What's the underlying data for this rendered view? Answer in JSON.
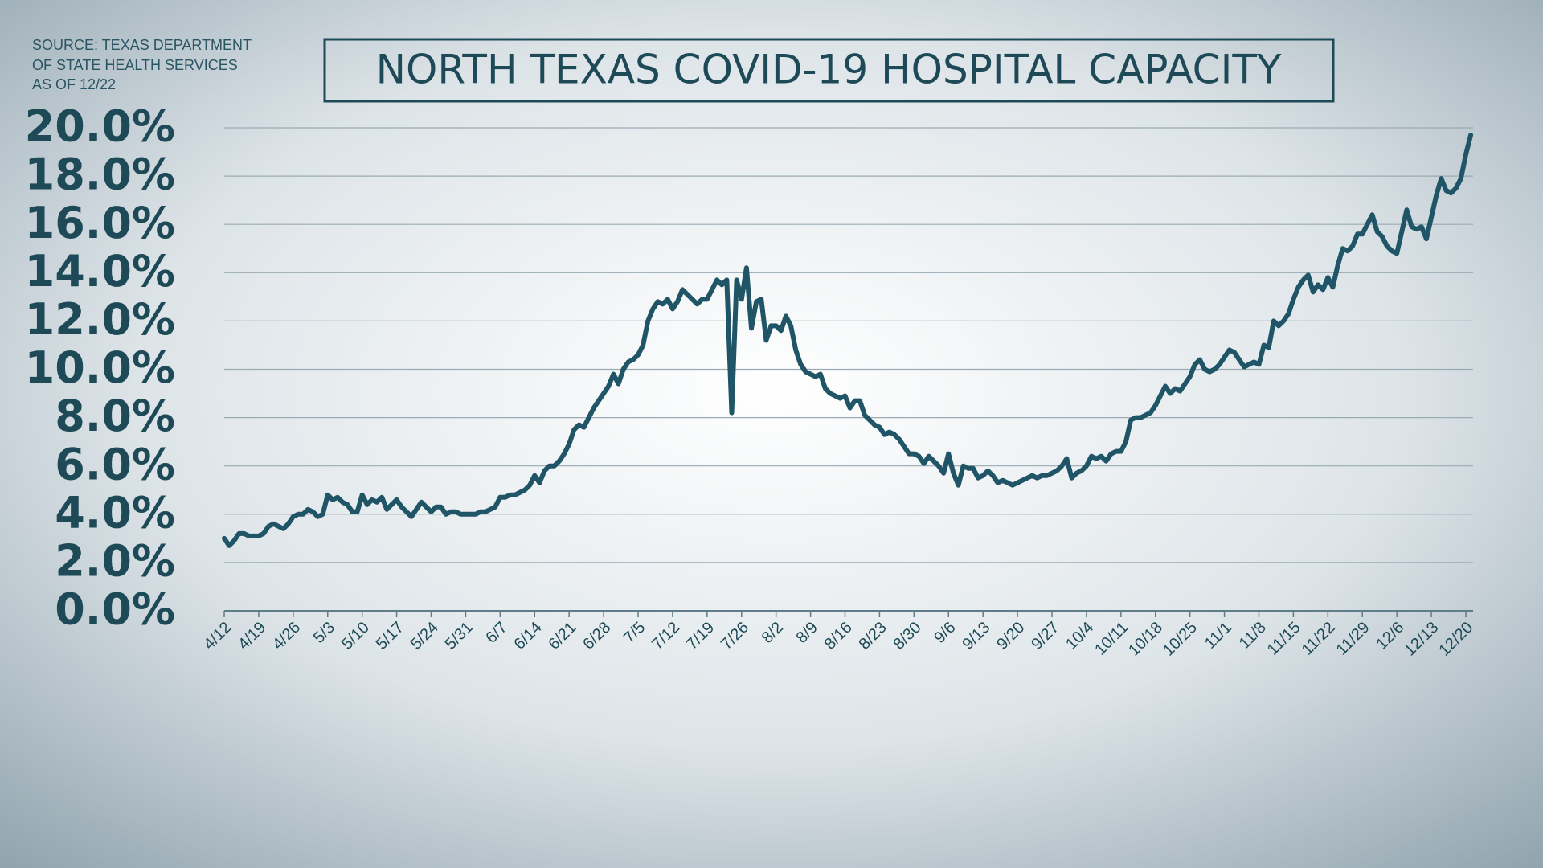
{
  "chart_data": {
    "type": "line",
    "title": "NORTH TEXAS COVID-19 HOSPITAL CAPACITY",
    "source": [
      "SOURCE: TEXAS DEPARTMENT",
      "OF STATE HEALTH SERVICES",
      "AS OF 12/22"
    ],
    "color": "#1f5566",
    "grid": true,
    "ylim": [
      0,
      20
    ],
    "yticks": [
      {
        "value": 0,
        "label": "0.0%"
      },
      {
        "value": 2,
        "label": "2.0%"
      },
      {
        "value": 4,
        "label": "4.0%"
      },
      {
        "value": 6,
        "label": "6.0%"
      },
      {
        "value": 8,
        "label": "8.0%"
      },
      {
        "value": 10,
        "label": "10.0%"
      },
      {
        "value": 12,
        "label": "12.0%"
      },
      {
        "value": 14,
        "label": "14.0%"
      },
      {
        "value": 16,
        "label": "16.0%"
      },
      {
        "value": 18,
        "label": "18.0%"
      },
      {
        "value": 20,
        "label": "20.0%"
      }
    ],
    "categories": [
      "4/12",
      null,
      null,
      null,
      null,
      null,
      null,
      "4/19",
      null,
      null,
      null,
      null,
      null,
      null,
      "4/26",
      null,
      null,
      null,
      null,
      null,
      null,
      "5/3",
      null,
      null,
      null,
      null,
      null,
      null,
      "5/10",
      null,
      null,
      null,
      null,
      null,
      null,
      "5/17",
      null,
      null,
      null,
      null,
      null,
      null,
      "5/24",
      null,
      null,
      null,
      null,
      null,
      null,
      "5/31",
      null,
      null,
      null,
      null,
      null,
      null,
      "6/7",
      null,
      null,
      null,
      null,
      null,
      null,
      "6/14",
      null,
      null,
      null,
      null,
      null,
      null,
      "6/21",
      null,
      null,
      null,
      null,
      null,
      null,
      "6/28",
      null,
      null,
      null,
      null,
      null,
      null,
      "7/5",
      null,
      null,
      null,
      null,
      null,
      null,
      "7/12",
      null,
      null,
      null,
      null,
      null,
      null,
      "7/19",
      null,
      null,
      null,
      null,
      null,
      null,
      "7/26",
      null,
      null,
      null,
      null,
      null,
      null,
      "8/2",
      null,
      null,
      null,
      null,
      null,
      null,
      "8/9",
      null,
      null,
      null,
      null,
      null,
      null,
      "8/16",
      null,
      null,
      null,
      null,
      null,
      null,
      "8/23",
      null,
      null,
      null,
      null,
      null,
      null,
      "8/30",
      null,
      null,
      null,
      null,
      null,
      null,
      "9/6",
      null,
      null,
      null,
      null,
      null,
      null,
      "9/13",
      null,
      null,
      null,
      null,
      null,
      null,
      "9/20",
      null,
      null,
      null,
      null,
      null,
      null,
      "9/27",
      null,
      null,
      null,
      null,
      null,
      null,
      "10/4",
      null,
      null,
      null,
      null,
      null,
      null,
      "10/11",
      null,
      null,
      null,
      null,
      null,
      null,
      "10/18",
      null,
      null,
      null,
      null,
      null,
      null,
      "10/25",
      null,
      null,
      null,
      null,
      null,
      null,
      "11/1",
      null,
      null,
      null,
      null,
      null,
      null,
      "11/8",
      null,
      null,
      null,
      null,
      null,
      null,
      "11/15",
      null,
      null,
      null,
      null,
      null,
      null,
      "11/22",
      null,
      null,
      null,
      null,
      null,
      null,
      "11/29",
      null,
      null,
      null,
      null,
      null,
      null,
      "12/6",
      null,
      null,
      null,
      null,
      null,
      null,
      "12/13",
      null,
      null,
      null,
      null,
      null,
      null,
      "12/20",
      null
    ],
    "values": [
      3.0,
      2.7,
      2.9,
      3.2,
      3.2,
      3.1,
      3.1,
      3.1,
      3.2,
      3.5,
      3.6,
      3.5,
      3.4,
      3.6,
      3.9,
      4.0,
      4.0,
      4.2,
      4.1,
      3.9,
      4.0,
      4.8,
      4.6,
      4.7,
      4.5,
      4.4,
      4.1,
      4.1,
      4.8,
      4.4,
      4.6,
      4.5,
      4.7,
      4.2,
      4.4,
      4.6,
      4.3,
      4.1,
      3.9,
      4.2,
      4.5,
      4.3,
      4.1,
      4.3,
      4.3,
      4.0,
      4.1,
      4.1,
      4.0,
      4.0,
      4.0,
      4.0,
      4.1,
      4.1,
      4.2,
      4.3,
      4.7,
      4.7,
      4.8,
      4.8,
      4.9,
      5.0,
      5.2,
      5.6,
      5.3,
      5.8,
      6.0,
      6.0,
      6.2,
      6.5,
      6.9,
      7.5,
      7.7,
      7.6,
      8.0,
      8.4,
      8.7,
      9.0,
      9.3,
      9.8,
      9.4,
      10.0,
      10.3,
      10.4,
      10.6,
      11.0,
      12.0,
      12.5,
      12.8,
      12.7,
      12.9,
      12.5,
      12.8,
      13.3,
      13.1,
      12.9,
      12.7,
      12.9,
      12.9,
      13.3,
      13.7,
      13.5,
      13.7,
      8.2,
      13.7,
      12.9,
      14.2,
      11.7,
      12.8,
      12.9,
      11.2,
      11.8,
      11.8,
      11.6,
      12.2,
      11.8,
      10.8,
      10.2,
      9.9,
      9.8,
      9.7,
      9.8,
      9.2,
      9.0,
      8.9,
      8.8,
      8.9,
      8.4,
      8.7,
      8.7,
      8.1,
      7.9,
      7.7,
      7.6,
      7.3,
      7.4,
      7.3,
      7.1,
      6.8,
      6.5,
      6.5,
      6.4,
      6.1,
      6.4,
      6.2,
      6.0,
      5.7,
      6.5,
      5.7,
      5.2,
      6.0,
      5.9,
      5.9,
      5.5,
      5.6,
      5.8,
      5.6,
      5.3,
      5.4,
      5.3,
      5.2,
      5.3,
      5.4,
      5.5,
      5.6,
      5.5,
      5.6,
      5.6,
      5.7,
      5.8,
      6.0,
      6.3,
      5.5,
      5.7,
      5.8,
      6.0,
      6.4,
      6.3,
      6.4,
      6.2,
      6.5,
      6.6,
      6.6,
      7.0,
      7.9,
      8.0,
      8.0,
      8.1,
      8.2,
      8.5,
      8.9,
      9.3,
      9.0,
      9.2,
      9.1,
      9.4,
      9.7,
      10.2,
      10.4,
      10.0,
      9.9,
      10.0,
      10.2,
      10.5,
      10.8,
      10.7,
      10.4,
      10.1,
      10.2,
      10.3,
      10.2,
      11.0,
      10.9,
      12.0,
      11.8,
      12.0,
      12.3,
      12.9,
      13.4,
      13.7,
      13.9,
      13.2,
      13.5,
      13.3,
      13.8,
      13.4,
      14.3,
      15.0,
      14.9,
      15.1,
      15.6,
      15.6,
      16.0,
      16.4,
      15.7,
      15.5,
      15.1,
      14.9,
      14.8,
      15.7,
      16.6,
      15.9,
      15.8,
      15.9,
      15.4,
      16.3,
      17.2,
      17.9,
      17.4,
      17.3,
      17.5,
      17.9,
      18.9,
      19.7
    ]
  }
}
